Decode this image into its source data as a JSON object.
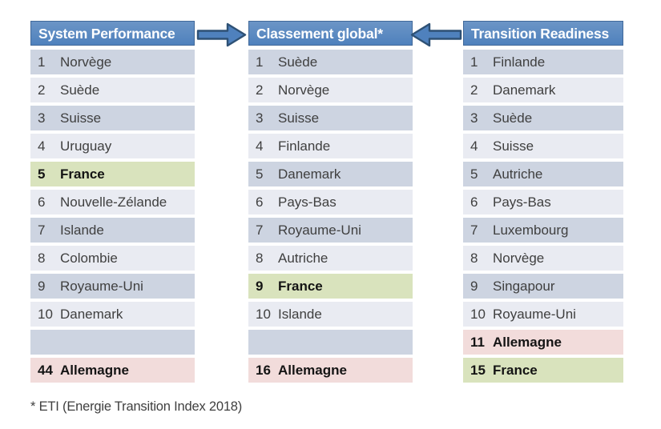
{
  "colors": {
    "header_bg": "#4f81bd",
    "header_bg_top": "#6c95c6",
    "header_border": "#41699a",
    "arrow_fill": "#4f81bd",
    "arrow_border": "#2e5175",
    "row_dark": "#cdd4e1",
    "row_light": "#e9ebf2",
    "row_green": "#d9e3bd",
    "row_pink": "#f2dcdb",
    "text": "#3f3f3f"
  },
  "columns": [
    {
      "title": "System Performance",
      "rows": [
        {
          "rank": "1",
          "country": "Norvège",
          "tone": "dark"
        },
        {
          "rank": "2",
          "country": "Suède",
          "tone": "light"
        },
        {
          "rank": "3",
          "country": "Suisse",
          "tone": "dark"
        },
        {
          "rank": "4",
          "country": "Uruguay",
          "tone": "light"
        },
        {
          "rank": "5",
          "country": "France",
          "tone": "green"
        },
        {
          "rank": "6",
          "country": "Nouvelle-Zélande",
          "tone": "light"
        },
        {
          "rank": "7",
          "country": "Islande",
          "tone": "dark"
        },
        {
          "rank": "8",
          "country": "Colombie",
          "tone": "light"
        },
        {
          "rank": "9",
          "country": "Royaume-Uni",
          "tone": "dark"
        },
        {
          "rank": "10",
          "country": "Danemark",
          "tone": "light"
        },
        {
          "rank": "",
          "country": "",
          "tone": "dark"
        },
        {
          "rank": "44",
          "country": "Allemagne",
          "tone": "pink"
        }
      ]
    },
    {
      "title": "Classement global*",
      "rows": [
        {
          "rank": "1",
          "country": "Suède",
          "tone": "dark"
        },
        {
          "rank": "2",
          "country": "Norvège",
          "tone": "light"
        },
        {
          "rank": "3",
          "country": "Suisse",
          "tone": "dark"
        },
        {
          "rank": "4",
          "country": "Finlande",
          "tone": "light"
        },
        {
          "rank": "5",
          "country": "Danemark",
          "tone": "dark"
        },
        {
          "rank": "6",
          "country": "Pays-Bas",
          "tone": "light"
        },
        {
          "rank": "7",
          "country": "Royaume-Uni",
          "tone": "dark"
        },
        {
          "rank": "8",
          "country": "Autriche",
          "tone": "light"
        },
        {
          "rank": "9",
          "country": "France",
          "tone": "green"
        },
        {
          "rank": "10",
          "country": "Islande",
          "tone": "light"
        },
        {
          "rank": "",
          "country": "",
          "tone": "dark"
        },
        {
          "rank": "16",
          "country": "Allemagne",
          "tone": "pink"
        }
      ]
    },
    {
      "title": "Transition Readiness",
      "rows": [
        {
          "rank": "1",
          "country": "Finlande",
          "tone": "dark"
        },
        {
          "rank": "2",
          "country": "Danemark",
          "tone": "light"
        },
        {
          "rank": "3",
          "country": "Suède",
          "tone": "dark"
        },
        {
          "rank": "4",
          "country": "Suisse",
          "tone": "light"
        },
        {
          "rank": "5",
          "country": "Autriche",
          "tone": "dark"
        },
        {
          "rank": "6",
          "country": "Pays-Bas",
          "tone": "light"
        },
        {
          "rank": "7",
          "country": "Luxembourg",
          "tone": "dark"
        },
        {
          "rank": "8",
          "country": "Norvège",
          "tone": "light"
        },
        {
          "rank": "9",
          "country": "Singapour",
          "tone": "dark"
        },
        {
          "rank": "10",
          "country": "Royaume-Uni",
          "tone": "light"
        },
        {
          "rank": "11",
          "country": "Allemagne",
          "tone": "pink"
        },
        {
          "rank": "15",
          "country": "France",
          "tone": "green"
        }
      ]
    }
  ],
  "footnote": "* ETI (Energie Transition Index 2018)"
}
